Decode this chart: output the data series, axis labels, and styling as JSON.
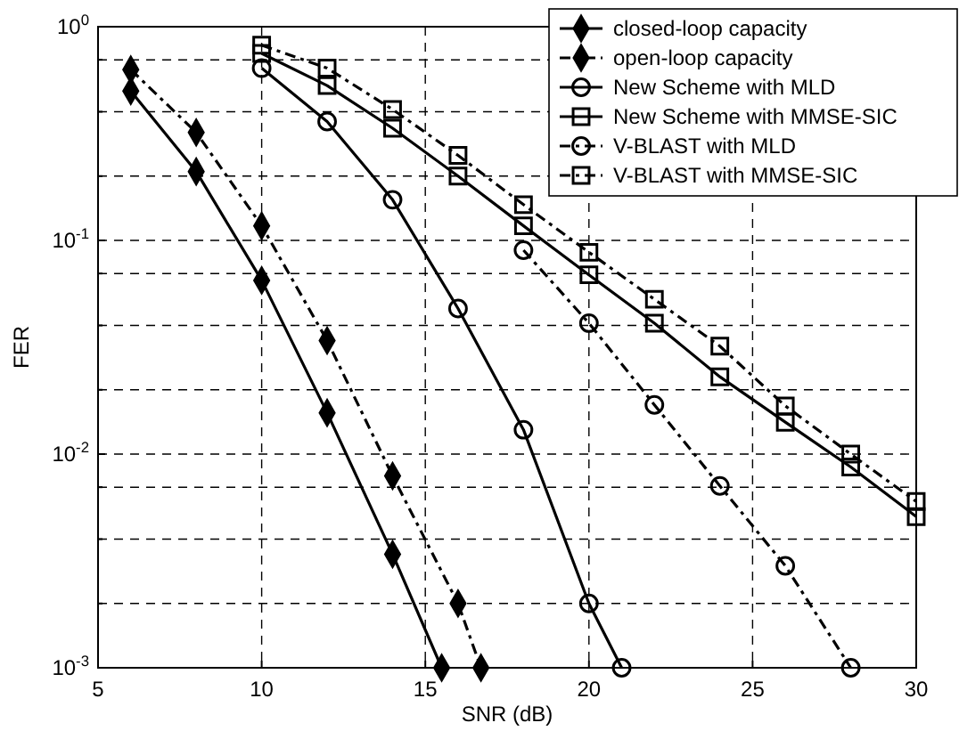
{
  "chart_data": {
    "type": "line",
    "xlabel": "SNR  (dB)",
    "ylabel": "FER",
    "log": "y",
    "grid": true,
    "legend": "top right",
    "xlim": [
      5,
      30
    ],
    "xticks": [
      5,
      10,
      15,
      20,
      25,
      30
    ],
    "ylim": [
      0.001,
      1
    ],
    "yticks": [
      {
        "value": 0.001,
        "label": "10$^{-3}$"
      },
      {
        "value": 0.002,
        "label": null
      },
      {
        "value": 0.004,
        "label": null
      },
      {
        "value": 0.007,
        "label": null
      },
      {
        "value": 0.01,
        "label": "10$^{-2}$"
      },
      {
        "value": 0.02,
        "label": null
      },
      {
        "value": 0.04,
        "label": null
      },
      {
        "value": 0.07,
        "label": null
      },
      {
        "value": 0.1,
        "label": "10$^{-1}$"
      },
      {
        "value": 0.2,
        "label": null
      },
      {
        "value": 0.4,
        "label": null
      },
      {
        "value": 0.7,
        "label": null
      },
      {
        "value": 1,
        "label": "10$^{0}$"
      }
    ],
    "series": [
      {
        "name": "closed-loop capacity",
        "color": "#000000",
        "marker": "diamond",
        "line_style": "solid",
        "x": [
          6,
          8,
          10,
          12,
          14,
          15.5
        ],
        "values": [
          0.5,
          0.21,
          0.065,
          0.0156,
          0.0034,
          0.001
        ]
      },
      {
        "name": "open-loop capacity",
        "color": "#000000",
        "marker": "diamond",
        "line_style": "dashed",
        "x": [
          6,
          8,
          10,
          12,
          14,
          16,
          16.7
        ],
        "values": [
          0.63,
          0.32,
          0.117,
          0.034,
          0.0079,
          0.002,
          0.001
        ]
      },
      {
        "name": "New Scheme with MLD",
        "color": "#000000",
        "marker": "circle",
        "line_style": "solid",
        "x": [
          10,
          12,
          14,
          16,
          18,
          20,
          21
        ],
        "values": [
          0.64,
          0.36,
          0.155,
          0.048,
          0.013,
          0.002,
          0.001
        ]
      },
      {
        "name": "New Scheme with MMSE-SIC",
        "color": "#000000",
        "marker": "square",
        "line_style": "solid",
        "x": [
          10,
          12,
          14,
          16,
          18,
          20,
          22,
          24,
          26,
          28,
          30
        ],
        "values": [
          0.75,
          0.53,
          0.335,
          0.2,
          0.117,
          0.069,
          0.041,
          0.023,
          0.0141,
          0.0087,
          0.0051
        ]
      },
      {
        "name": "V-BLAST with MLD",
        "color": "#000000",
        "marker": "circle",
        "line_style": "dashed",
        "x": [
          18,
          20,
          22,
          24,
          26,
          28
        ],
        "values": [
          0.09,
          0.041,
          0.017,
          0.0071,
          0.003,
          0.001
        ]
      },
      {
        "name": "V-BLAST with MMSE-SIC",
        "color": "#000000",
        "marker": "square",
        "line_style": "dashed",
        "x": [
          10,
          12,
          14,
          16,
          18,
          20,
          22,
          24,
          26,
          28,
          30
        ],
        "values": [
          0.82,
          0.64,
          0.41,
          0.25,
          0.147,
          0.088,
          0.053,
          0.032,
          0.0168,
          0.01,
          0.006
        ]
      }
    ]
  }
}
